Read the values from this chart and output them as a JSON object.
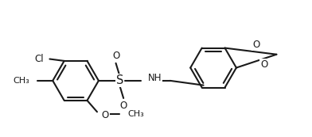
{
  "bg": "#ffffff",
  "lc": "#1a1a1a",
  "lw": 1.5,
  "fs": 8.5,
  "figsize": [
    3.92,
    1.73
  ],
  "dpi": 100,
  "xlim": [
    -1.8,
    5.5
  ],
  "ylim": [
    -1.7,
    1.9
  ]
}
